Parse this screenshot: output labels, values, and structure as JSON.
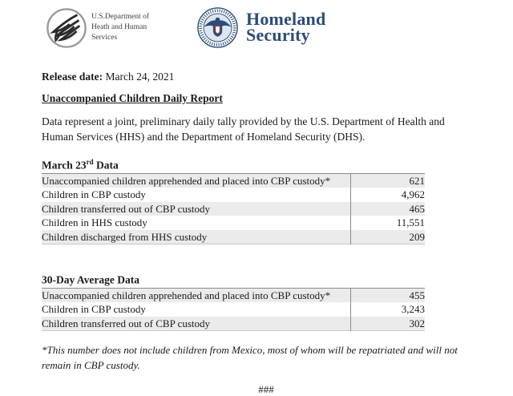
{
  "header": {
    "hhs_logo": {
      "icon": "hhs-eagle-icon",
      "text": "U.S.Department of\nHeath and Human\nServices"
    },
    "dhs_logo": {
      "icon": "dhs-seal-icon",
      "line1": "Homeland",
      "line2": "Security"
    }
  },
  "release": {
    "label": "Release date:",
    "value": " March 24, 2021"
  },
  "title": "Unaccompanied Children Daily Report",
  "intro": "Data represent a joint, preliminary daily tally provided by the U.S. Department of Health and Human Services (HHS) and the Department of Homeland Security (DHS).",
  "tables": [
    {
      "heading_prefix": "March 23",
      "heading_sup": "rd",
      "heading_suffix": " Data",
      "rows": [
        {
          "label": "Unaccompanied children apprehended and placed into CBP custody*",
          "value": "621"
        },
        {
          "label": "Children in CBP custody",
          "value": "4,962"
        },
        {
          "label": "Children transferred out of CBP custody",
          "value": "465"
        },
        {
          "label": "Children in HHS custody",
          "value": "11,551"
        },
        {
          "label": "Children discharged from HHS custody",
          "value": "209"
        }
      ]
    },
    {
      "heading_prefix": "30-Day Average Data",
      "heading_sup": "",
      "heading_suffix": "",
      "rows": [
        {
          "label": "Unaccompanied children apprehended and placed into CBP custody*",
          "value": "455"
        },
        {
          "label": "Children in CBP custody",
          "value": "3,243"
        },
        {
          "label": "Children transferred out of CBP custody",
          "value": "302"
        }
      ]
    }
  ],
  "footnote": "*This number does not include children from Mexico, most of whom will be repatriated and will not remain in CBP custody.",
  "end_mark": "###",
  "colors": {
    "dhs_blue": "#2c4c77",
    "row_shade": "#ebebeb",
    "table_border": "#8c8c8c"
  }
}
